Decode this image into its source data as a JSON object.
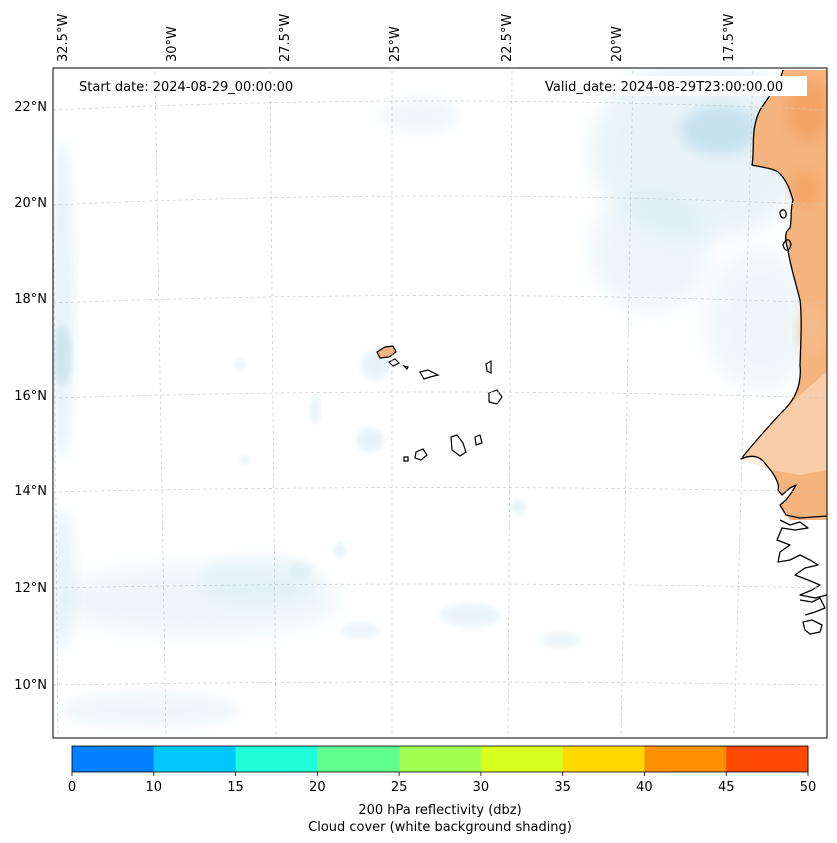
{
  "map": {
    "start_date_label": "Start date: 2024-08-29_00:00:00",
    "valid_date_label": "Valid_date: 2024-08-29T23:00:00.00",
    "lon_labels": [
      "32.5°W",
      "30°W",
      "27.5°W",
      "25°W",
      "22.5°W",
      "20°W",
      "17.5°W"
    ],
    "lat_labels": [
      "22°N",
      "20°N",
      "18°N",
      "16°N",
      "14°N",
      "12°N",
      "10°N"
    ],
    "land_color": "#f5b47d",
    "coast_color": "#000000",
    "cloud_color": "#d6ebf3"
  },
  "colorbar": {
    "colors": [
      "#0080ff",
      "#00c8ff",
      "#20ffd8",
      "#60ff90",
      "#a0ff50",
      "#d8ff20",
      "#ffd800",
      "#ff9000",
      "#ff4800"
    ],
    "tick_labels": [
      "0",
      "10",
      "15",
      "20",
      "25",
      "30",
      "35",
      "40",
      "45",
      "50"
    ],
    "label_line1": "200 hPa reflectivity (dbz)",
    "label_line2": "Cloud cover (white background shading)"
  }
}
